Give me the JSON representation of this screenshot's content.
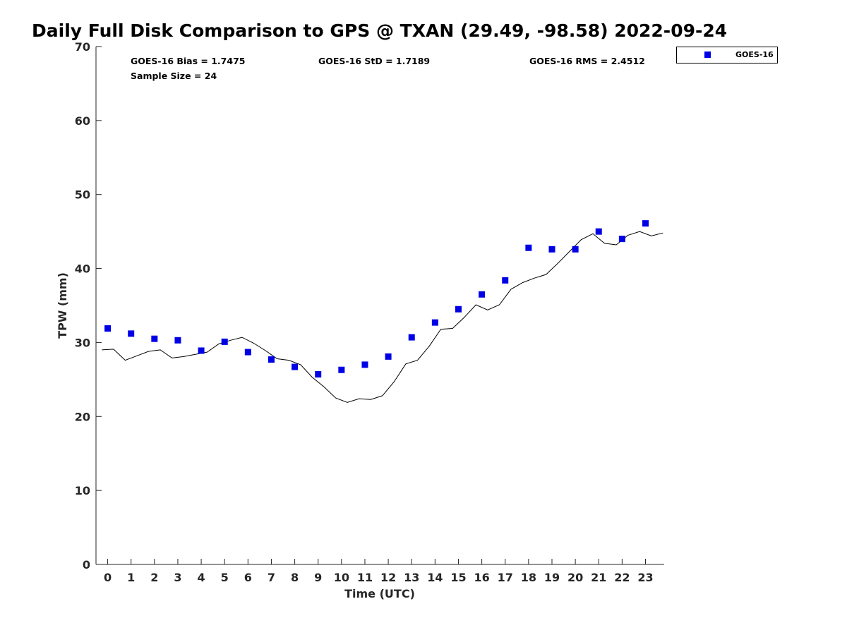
{
  "chart_data": {
    "type": "scatter",
    "title": "Daily Full Disk Comparison to GPS @ TXAN (29.49, -98.58) 2022-09-24",
    "xlabel": "Time (UTC)",
    "ylabel": "TPW (mm)",
    "xlim": [
      -0.5,
      23.8
    ],
    "ylim": [
      0,
      70
    ],
    "xticks": [
      "0",
      "1",
      "2",
      "3",
      "4",
      "5",
      "6",
      "7",
      "8",
      "9",
      "10",
      "11",
      "12",
      "13",
      "14",
      "15",
      "16",
      "17",
      "18",
      "19",
      "20",
      "21",
      "22",
      "23"
    ],
    "yticks": [
      "0",
      "10",
      "20",
      "30",
      "40",
      "50",
      "60",
      "70"
    ],
    "grid": false,
    "legend_position": "top-right",
    "stats": {
      "bias": "GOES-16 Bias = 1.7475",
      "std": "GOES-16 StD = 1.7189",
      "rms": "GOES-16 RMS = 2.4512",
      "sample_size": "Sample Size = 24"
    },
    "series": [
      {
        "name": "GOES-16",
        "kind": "scatter",
        "color": "#0000e6",
        "marker": "square",
        "x": [
          0,
          1,
          2,
          3,
          4,
          5,
          6,
          7,
          8,
          9,
          10,
          11,
          12,
          13,
          14,
          15,
          16,
          17,
          18,
          19,
          20,
          21,
          22,
          23
        ],
        "y": [
          31.9,
          31.2,
          30.5,
          30.3,
          28.9,
          30.1,
          28.7,
          27.7,
          26.7,
          25.7,
          26.3,
          27.0,
          28.1,
          30.7,
          32.7,
          34.5,
          36.5,
          38.4,
          42.8,
          42.6,
          42.6,
          45.0,
          44.0,
          46.1
        ]
      },
      {
        "kind": "line",
        "color": "#000000",
        "x": [
          -0.25,
          0.25,
          0.75,
          1.25,
          1.75,
          2.25,
          2.75,
          3.25,
          3.75,
          4.25,
          4.75,
          5.25,
          5.75,
          6.25,
          6.75,
          7.25,
          7.75,
          8.25,
          8.75,
          9.25,
          9.75,
          10.25,
          10.75,
          11.25,
          11.75,
          12.25,
          12.75,
          13.25,
          13.75,
          14.25,
          14.75,
          15.25,
          15.75,
          16.25,
          16.75,
          17.25,
          17.75,
          18.25,
          18.75,
          19.25,
          19.75,
          20.25,
          20.75,
          21.25,
          21.75,
          22.25,
          22.75,
          23.25,
          23.75
        ],
        "y": [
          29.0,
          29.1,
          27.6,
          28.2,
          28.8,
          29.0,
          27.9,
          28.1,
          28.4,
          28.7,
          29.8,
          30.3,
          30.7,
          29.9,
          28.9,
          27.8,
          27.6,
          27.0,
          25.3,
          24.0,
          22.5,
          21.9,
          22.4,
          22.3,
          22.8,
          24.7,
          27.1,
          27.6,
          29.5,
          31.8,
          31.9,
          33.4,
          35.1,
          34.4,
          35.1,
          37.2,
          38.1,
          38.7,
          39.2,
          40.7,
          42.3,
          43.9,
          44.7,
          43.4,
          43.2,
          44.5,
          45.0,
          44.4,
          44.8
        ]
      }
    ]
  }
}
